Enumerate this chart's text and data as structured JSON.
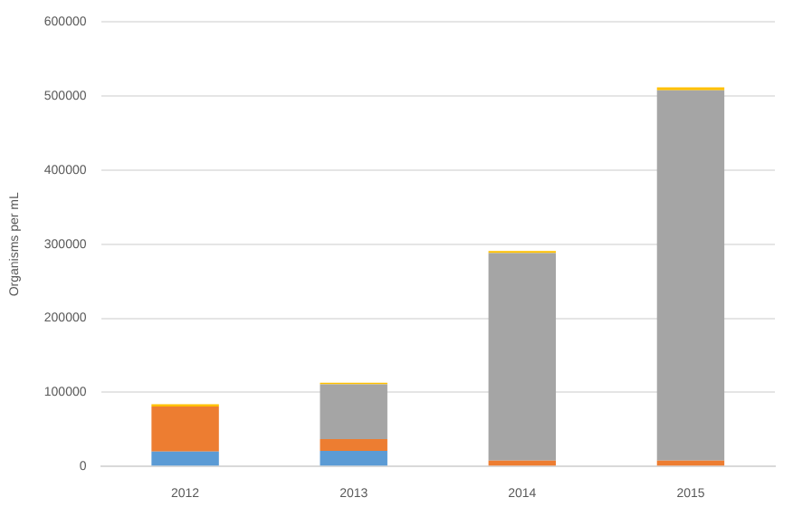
{
  "chart_data": {
    "type": "bar",
    "stacked": true,
    "ylabel": "Organisms per mL",
    "categories": [
      "2012",
      "2013",
      "2014",
      "2015"
    ],
    "series": [
      {
        "color": "#5b9bd5",
        "values": [
          20000,
          21000,
          null,
          null
        ]
      },
      {
        "color": "#ed7d31",
        "values": [
          61000,
          16000,
          8000,
          8000
        ]
      },
      {
        "color": "#a5a5a5",
        "values": [
          0,
          74000,
          280000,
          500000
        ]
      },
      {
        "color": "#ffc000",
        "values": [
          3000,
          2000,
          3000,
          4000
        ]
      }
    ],
    "ylim": [
      0,
      600000
    ],
    "yticks": [
      0,
      100000,
      200000,
      300000,
      400000,
      500000,
      600000
    ],
    "grid": "y",
    "legend": false
  }
}
